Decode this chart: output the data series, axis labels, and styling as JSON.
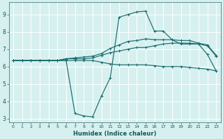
{
  "title": "",
  "xlabel": "Humidex (Indice chaleur)",
  "bg_color": "#d6f0f0",
  "grid_color": "#b0d8d8",
  "line_color": "#1a6b6b",
  "xlim": [
    -0.5,
    23.5
  ],
  "ylim": [
    2.8,
    9.7
  ],
  "xticks": [
    0,
    1,
    2,
    3,
    4,
    5,
    6,
    7,
    8,
    9,
    10,
    11,
    12,
    13,
    14,
    15,
    16,
    17,
    18,
    19,
    20,
    21,
    22,
    23
  ],
  "yticks": [
    3,
    4,
    5,
    6,
    7,
    8,
    9
  ],
  "line1_x": [
    0,
    1,
    2,
    3,
    4,
    5,
    6,
    7,
    8,
    9,
    10,
    11,
    12,
    13,
    14,
    15,
    16,
    17,
    18,
    19,
    20,
    21,
    22,
    23
  ],
  "line1_y": [
    6.35,
    6.35,
    6.35,
    6.35,
    6.35,
    6.35,
    6.35,
    6.35,
    6.35,
    6.35,
    6.25,
    6.15,
    6.1,
    6.1,
    6.1,
    6.1,
    6.05,
    6.0,
    6.0,
    6.0,
    5.95,
    5.9,
    5.85,
    5.75
  ],
  "line2_x": [
    0,
    1,
    2,
    3,
    4,
    5,
    6,
    7,
    8,
    9,
    10,
    11,
    12,
    13,
    14,
    15,
    16,
    17,
    18,
    19,
    20,
    21,
    22,
    23
  ],
  "line2_y": [
    6.35,
    6.35,
    6.35,
    6.35,
    6.35,
    6.35,
    6.45,
    6.45,
    6.45,
    6.5,
    6.65,
    6.8,
    6.9,
    7.0,
    7.1,
    7.1,
    7.2,
    7.3,
    7.35,
    7.35,
    7.35,
    7.3,
    7.2,
    6.6
  ],
  "line3_x": [
    0,
    1,
    2,
    3,
    4,
    5,
    6,
    7,
    8,
    9,
    10,
    11,
    12,
    13,
    14,
    15,
    16,
    17,
    18,
    19,
    20,
    21,
    22,
    23
  ],
  "line3_y": [
    6.35,
    6.35,
    6.35,
    6.35,
    6.35,
    6.35,
    6.45,
    6.5,
    6.55,
    6.6,
    6.75,
    7.05,
    7.25,
    7.45,
    7.5,
    7.6,
    7.55,
    7.55,
    7.55,
    7.5,
    7.5,
    7.35,
    7.25,
    6.65
  ],
  "line4_x": [
    0,
    1,
    2,
    3,
    4,
    5,
    6,
    7,
    8,
    9,
    10,
    11,
    12,
    13,
    14,
    15,
    16,
    17,
    18,
    19,
    20,
    21,
    22,
    23
  ],
  "line4_y": [
    6.35,
    6.35,
    6.35,
    6.35,
    6.35,
    6.35,
    6.35,
    3.3,
    3.15,
    3.1,
    4.3,
    5.35,
    8.85,
    9.0,
    9.15,
    9.2,
    8.05,
    8.05,
    7.55,
    7.3,
    7.3,
    7.3,
    6.7,
    5.75
  ]
}
